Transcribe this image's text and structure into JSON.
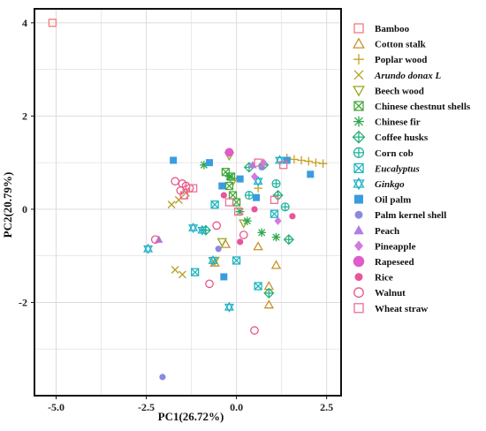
{
  "chart_data": {
    "type": "scatter",
    "title": "",
    "xlabel": "PC1(26.72%)",
    "ylabel": "PC2(20.79%)",
    "xlim": [
      -5.6,
      2.9
    ],
    "ylim": [
      -4.0,
      4.3
    ],
    "x_ticks": [
      -5.0,
      -2.5,
      0.0,
      2.5
    ],
    "x_tick_labels": [
      "-5.0",
      "-2.5",
      "0.0",
      "2.5"
    ],
    "y_ticks": [
      -2,
      0,
      2,
      4
    ],
    "y_tick_labels": [
      "-2",
      "0",
      "2",
      "4"
    ],
    "grid": true,
    "legend_position": "right",
    "series": [
      {
        "name": "Bamboo",
        "marker": "open-square",
        "color": "#f07b7b",
        "points": [
          [
            -5.1,
            4.0
          ]
        ]
      },
      {
        "name": "Cotton stalk",
        "marker": "open-triangle",
        "color": "#c8912a",
        "points": [
          [
            0.6,
            -0.8
          ],
          [
            1.1,
            -1.2
          ],
          [
            0.9,
            -1.65
          ],
          [
            0.9,
            -2.05
          ],
          [
            -0.3,
            -0.75
          ],
          [
            -0.6,
            -1.15
          ]
        ]
      },
      {
        "name": "Poplar wood",
        "marker": "plus",
        "color": "#c8a020",
        "points": [
          [
            1.4,
            1.1
          ],
          [
            1.6,
            1.07
          ],
          [
            1.8,
            1.05
          ],
          [
            2.0,
            1.03
          ],
          [
            2.2,
            1.0
          ],
          [
            2.4,
            0.98
          ],
          [
            0.6,
            0.45
          ]
        ]
      },
      {
        "name": "Arundo donax L",
        "name_style": "italic",
        "marker": "x",
        "color": "#b5a028",
        "points": [
          [
            -1.8,
            0.1
          ],
          [
            -1.6,
            0.2
          ],
          [
            -1.4,
            0.35
          ],
          [
            -1.7,
            -1.3
          ],
          [
            -1.5,
            -1.4
          ]
        ]
      },
      {
        "name": "Beech wood",
        "marker": "open-triangle-down",
        "color": "#9aa520",
        "points": [
          [
            -0.2,
            1.15
          ],
          [
            -0.1,
            0.6
          ],
          [
            -0.4,
            -0.7
          ],
          [
            -0.6,
            -1.1
          ],
          [
            0.2,
            -0.3
          ]
        ]
      },
      {
        "name": "Chinese chestnut shells",
        "marker": "square-x",
        "color": "#47a83a",
        "points": [
          [
            -0.3,
            0.8
          ],
          [
            -0.15,
            0.7
          ],
          [
            -0.2,
            0.5
          ],
          [
            -0.1,
            0.3
          ],
          [
            0.0,
            0.15
          ]
        ]
      },
      {
        "name": "Chinese fir",
        "marker": "asterisk",
        "color": "#2ea84c",
        "points": [
          [
            -0.9,
            0.95
          ],
          [
            -0.2,
            0.7
          ],
          [
            0.1,
            -0.05
          ],
          [
            0.7,
            -0.5
          ],
          [
            1.1,
            -0.6
          ],
          [
            0.3,
            -0.25
          ]
        ]
      },
      {
        "name": "Coffee husks",
        "marker": "diamond-plus",
        "color": "#27b07a",
        "points": [
          [
            0.35,
            0.9
          ],
          [
            0.75,
            0.95
          ],
          [
            1.15,
            0.3
          ],
          [
            1.45,
            -0.65
          ],
          [
            -0.85,
            -0.45
          ],
          [
            0.9,
            -1.8
          ]
        ]
      },
      {
        "name": "Corn cob",
        "marker": "circle-plus",
        "color": "#22b5a0",
        "points": [
          [
            1.35,
            0.05
          ],
          [
            0.35,
            0.3
          ],
          [
            1.1,
            0.55
          ]
        ]
      },
      {
        "name": "Eucalyptus",
        "name_style": "italic",
        "marker": "square-x",
        "color": "#1fb6c0",
        "points": [
          [
            -1.15,
            -1.35
          ],
          [
            -0.6,
            0.1
          ],
          [
            0.0,
            -1.1
          ],
          [
            1.05,
            -0.1
          ],
          [
            0.6,
            -1.65
          ]
        ]
      },
      {
        "name": "Ginkgo",
        "name_style": "italic",
        "marker": "star-triangle",
        "color": "#20b2c8",
        "points": [
          [
            -2.45,
            -0.85
          ],
          [
            -1.2,
            -0.4
          ],
          [
            -0.95,
            -0.45
          ],
          [
            -0.65,
            -1.1
          ],
          [
            -0.2,
            -2.1
          ],
          [
            0.6,
            0.6
          ],
          [
            1.2,
            1.05
          ]
        ]
      },
      {
        "name": "Oil palm",
        "marker": "filled-square",
        "color": "#3a9ce0",
        "points": [
          [
            -1.75,
            1.05
          ],
          [
            -0.75,
            1.0
          ],
          [
            -0.4,
            0.5
          ],
          [
            0.1,
            0.65
          ],
          [
            1.4,
            1.05
          ],
          [
            2.05,
            0.75
          ],
          [
            -0.35,
            -1.45
          ],
          [
            0.55,
            0.25
          ]
        ]
      },
      {
        "name": "Palm kernel shell",
        "marker": "filled-circle",
        "color": "#8a8ae0",
        "points": [
          [
            -2.05,
            -3.6
          ],
          [
            -0.5,
            -0.85
          ],
          [
            0.7,
            0.9
          ]
        ]
      },
      {
        "name": "Peach",
        "marker": "filled-triangle",
        "color": "#b07ae8",
        "points": [
          [
            -2.15,
            -0.65
          ],
          [
            0.45,
            0.95
          ]
        ]
      },
      {
        "name": "Pineapple",
        "marker": "filled-diamond",
        "color": "#d27ae0",
        "points": [
          [
            0.5,
            0.7
          ],
          [
            0.75,
            1.0
          ],
          [
            1.15,
            -0.25
          ]
        ]
      },
      {
        "name": "Rapeseed",
        "marker": "filled-circle-large",
        "color": "#e05cc8",
        "points": [
          [
            -0.2,
            1.22
          ]
        ]
      },
      {
        "name": "Rice",
        "marker": "filled-circle",
        "color": "#e8559a",
        "points": [
          [
            0.5,
            0.0
          ],
          [
            1.55,
            -0.15
          ],
          [
            0.1,
            -0.7
          ],
          [
            -0.35,
            0.3
          ]
        ]
      },
      {
        "name": "Walnut",
        "marker": "open-circle",
        "color": "#e8558a",
        "points": [
          [
            -1.7,
            0.6
          ],
          [
            -1.5,
            0.55
          ],
          [
            -1.4,
            0.5
          ],
          [
            -1.55,
            0.4
          ],
          [
            -1.45,
            0.3
          ],
          [
            -1.3,
            0.45
          ],
          [
            -2.25,
            -0.65
          ],
          [
            -0.55,
            -0.35
          ],
          [
            -0.75,
            -1.6
          ],
          [
            0.5,
            -2.6
          ],
          [
            0.2,
            -0.55
          ]
        ]
      },
      {
        "name": "Wheat straw",
        "marker": "open-square",
        "color": "#ec6f94",
        "points": [
          [
            -1.2,
            0.45
          ],
          [
            -1.45,
            0.3
          ],
          [
            0.6,
            1.0
          ],
          [
            1.05,
            0.2
          ],
          [
            1.3,
            0.95
          ],
          [
            0.05,
            -0.05
          ],
          [
            -0.2,
            0.15
          ]
        ]
      }
    ]
  }
}
